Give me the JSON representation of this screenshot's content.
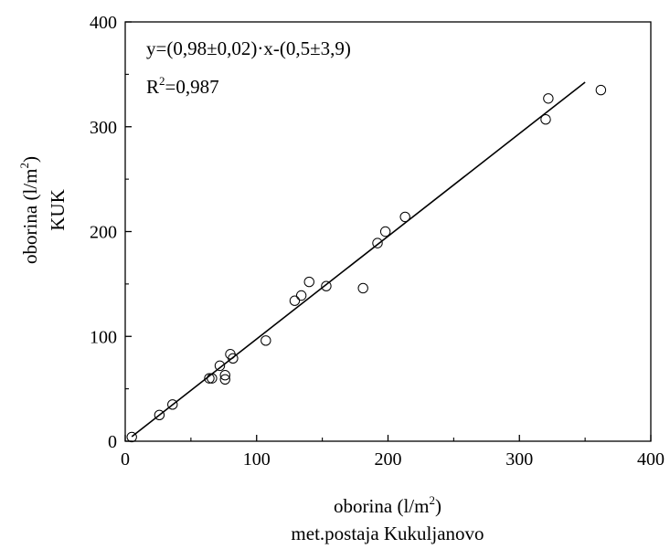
{
  "chart_data": {
    "type": "scatter",
    "xlabel": {
      "prefix": "oborina (l/m",
      "sup": "2",
      "suffix": ")",
      "line2": "met.postaja Kukuljanovo"
    },
    "ylabel": {
      "prefix": "oborina (l/m",
      "sup": "2",
      "suffix": ")",
      "line2": "KUK"
    },
    "xlim": [
      0,
      400
    ],
    "ylim": [
      0,
      400
    ],
    "xticks": [
      "0",
      "100",
      "200",
      "300",
      "400"
    ],
    "yticks": [
      "0",
      "100",
      "200",
      "300",
      "400"
    ],
    "grid": false,
    "annotations": {
      "equation": "y=(0,98±0,02)·x-(0,5±3,9)",
      "r2_prefix": "R",
      "r2_sup": "2",
      "r2_suffix": "=0,987"
    },
    "fit_line": {
      "x": [
        5,
        350
      ],
      "y": [
        4.4,
        342.5
      ]
    },
    "points": [
      {
        "x": 5,
        "y": 4
      },
      {
        "x": 26,
        "y": 25
      },
      {
        "x": 36,
        "y": 35
      },
      {
        "x": 64,
        "y": 60
      },
      {
        "x": 66,
        "y": 60
      },
      {
        "x": 72,
        "y": 72
      },
      {
        "x": 76,
        "y": 63
      },
      {
        "x": 76,
        "y": 59
      },
      {
        "x": 80,
        "y": 83
      },
      {
        "x": 82,
        "y": 79
      },
      {
        "x": 107,
        "y": 96
      },
      {
        "x": 129,
        "y": 134
      },
      {
        "x": 134,
        "y": 139
      },
      {
        "x": 140,
        "y": 152
      },
      {
        "x": 153,
        "y": 148
      },
      {
        "x": 181,
        "y": 146
      },
      {
        "x": 192,
        "y": 189
      },
      {
        "x": 198,
        "y": 200
      },
      {
        "x": 213,
        "y": 214
      },
      {
        "x": 320,
        "y": 307
      },
      {
        "x": 322,
        "y": 327
      },
      {
        "x": 362,
        "y": 335
      }
    ]
  }
}
